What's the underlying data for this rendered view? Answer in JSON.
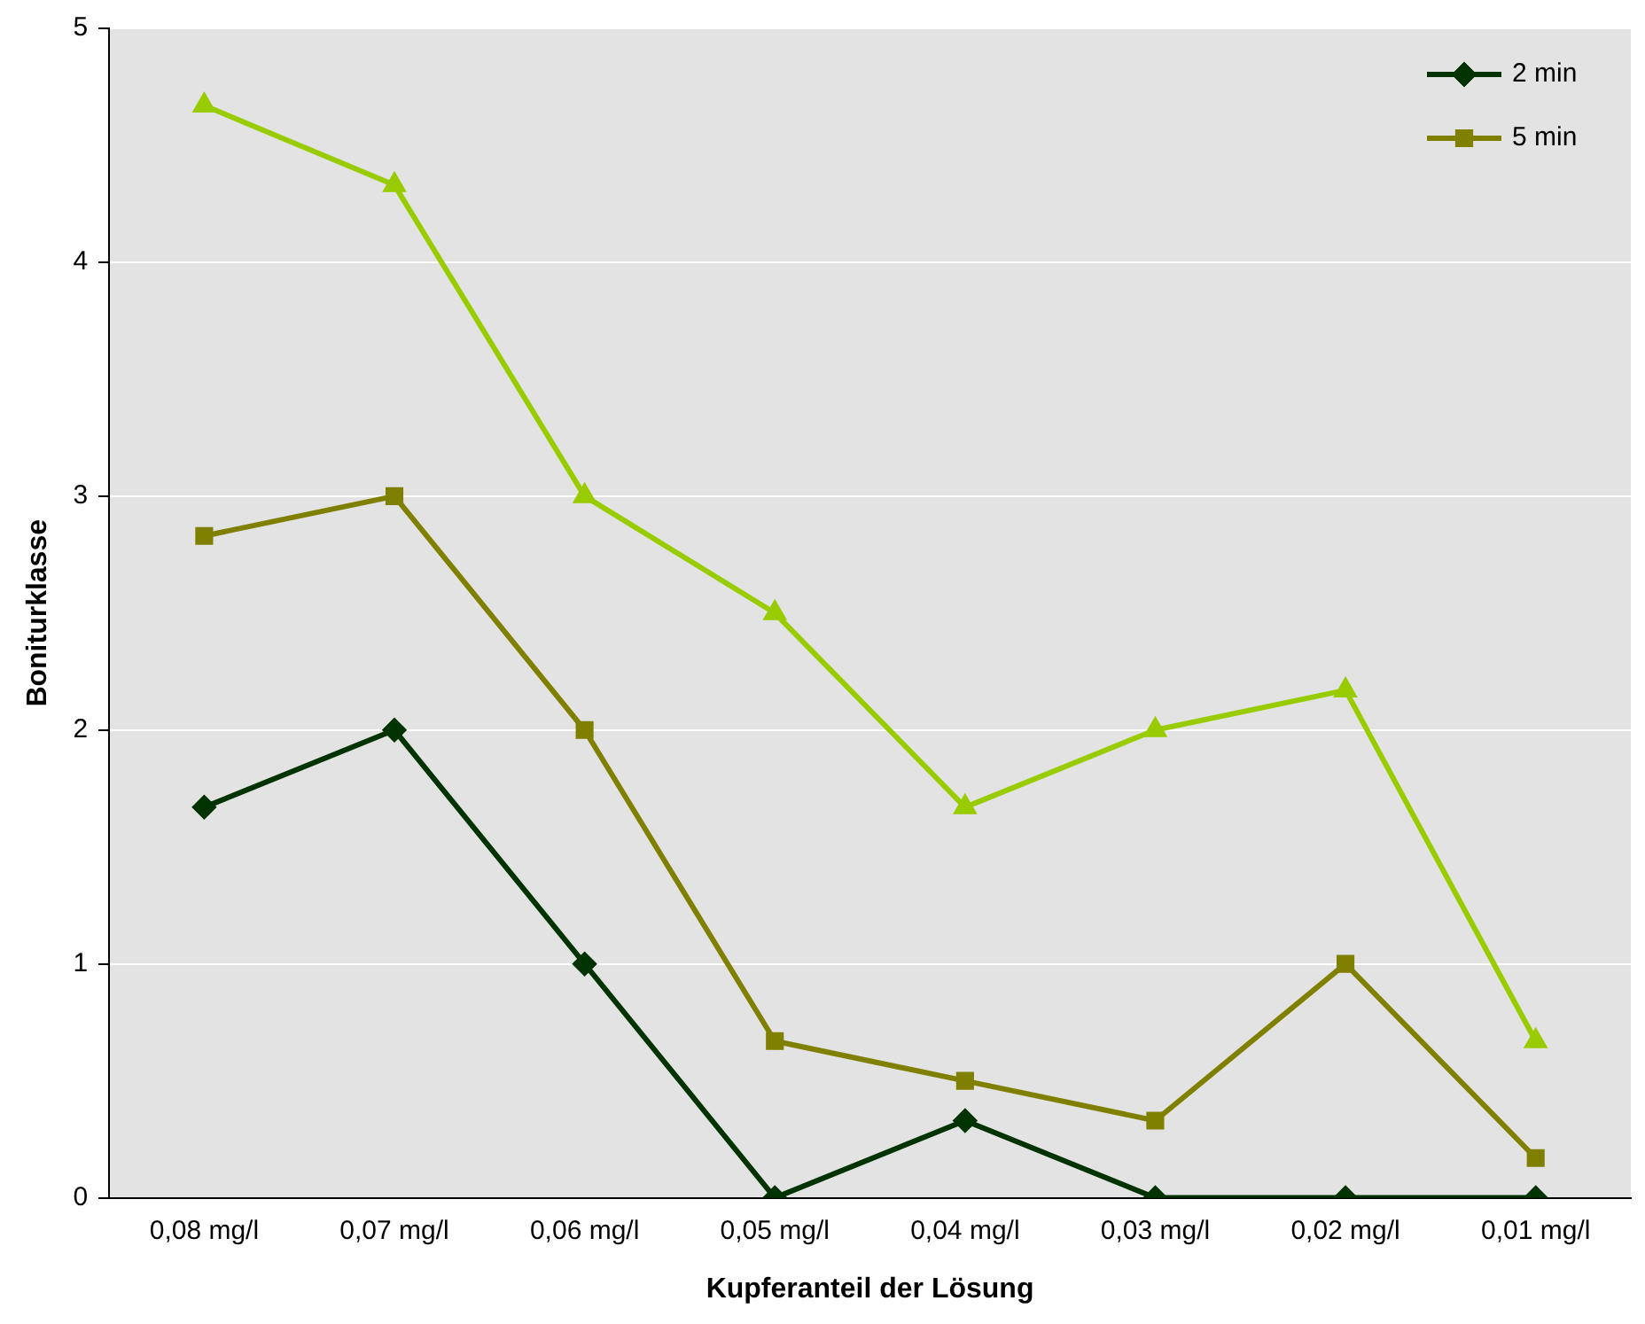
{
  "chart_data": {
    "type": "line",
    "xlabel": "Kupferanteil der Lösung",
    "ylabel": "Boniturklasse",
    "categories": [
      "0,08 mg/l",
      "0,07 mg/l",
      "0,06 mg/l",
      "0,05 mg/l",
      "0,04 mg/l",
      "0,03 mg/l",
      "0,02 mg/l",
      "0,01 mg/l"
    ],
    "series": [
      {
        "name": "2 min",
        "color": "#003300",
        "marker": "diamond",
        "values": [
          1.67,
          2,
          1,
          0,
          0.33,
          0,
          0,
          0
        ]
      },
      {
        "name": "5 min",
        "color": "#808000",
        "marker": "square",
        "values": [
          2.83,
          3,
          2,
          0.67,
          0.5,
          0.33,
          1,
          0.17
        ]
      },
      {
        "color": "#99cc00",
        "marker": "triangle",
        "values": [
          4.67,
          4.33,
          3,
          2.5,
          1.67,
          2,
          2.17,
          0.67
        ]
      }
    ],
    "ylim": [
      0,
      5
    ],
    "yticks": [
      0,
      1,
      2,
      3,
      4,
      5
    ],
    "grid": "y",
    "legend": "top right",
    "line_style": "solid"
  }
}
